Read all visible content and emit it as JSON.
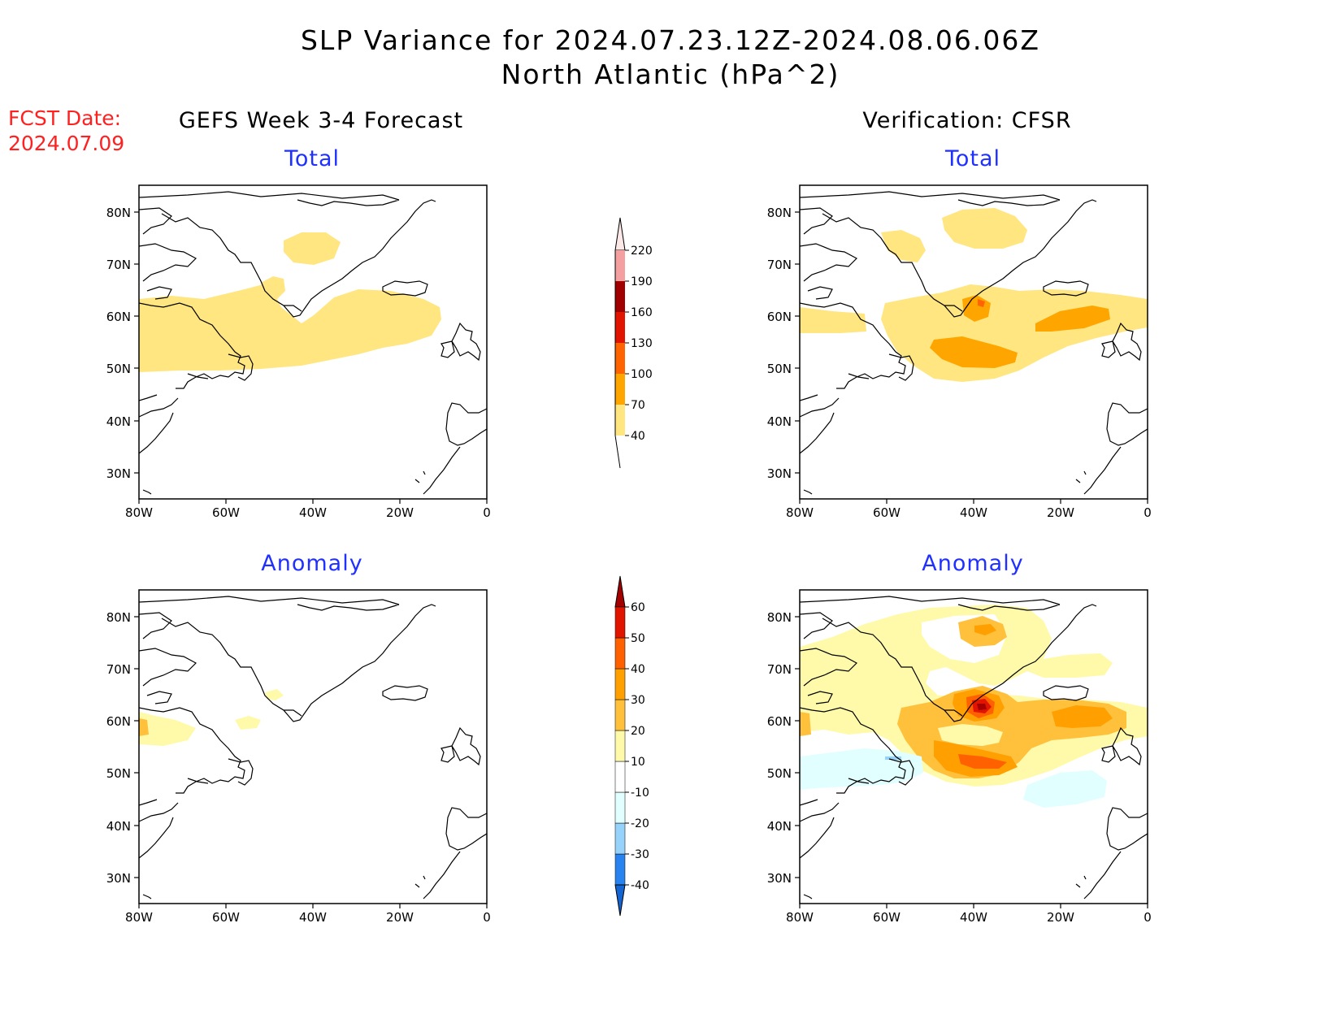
{
  "header": {
    "title_line1": "SLP Variance for 2024.07.23.12Z-2024.08.06.06Z",
    "title_line2": "North Atlantic (hPa^2)",
    "fcst_line1": "FCST Date:",
    "fcst_line2": "2024.07.09"
  },
  "columns": {
    "left_title": "GEFS Week 3-4 Forecast",
    "right_title": "Verification: CFSR"
  },
  "panels": {
    "tl_label": "Total",
    "tr_label": "Total",
    "bl_label": "Anomaly",
    "br_label": "Anomaly"
  },
  "axes": {
    "lat_ticks": [
      "80N",
      "70N",
      "60N",
      "50N",
      "40N",
      "30N"
    ],
    "lon_ticks": [
      "80W",
      "60W",
      "40W",
      "20W",
      "0"
    ]
  },
  "colorbar_total": {
    "labels": [
      "40",
      "70",
      "100",
      "130",
      "160",
      "190",
      "220"
    ],
    "colors": [
      "#ffe680",
      "#ffa500",
      "#ff6400",
      "#e01400",
      "#a00000",
      "#f4a0a0",
      "#fde8e8"
    ]
  },
  "colorbar_anomaly": {
    "labels": [
      "-40",
      "-30",
      "-20",
      "-10",
      "10",
      "20",
      "30",
      "40",
      "50",
      "60"
    ],
    "colors": [
      "#1464d2",
      "#2882f0",
      "#96d2fa",
      "#e1ffff",
      "#ffffff",
      "#fffaaa",
      "#ffc03c",
      "#ffa000",
      "#ff6000",
      "#e11400",
      "#a50000"
    ]
  },
  "fill_colors": {
    "yellow": "#ffe680",
    "orange": "#ffa500",
    "orange_red": "#ff6400",
    "pale_yellow": "#fffaaa",
    "light_orange": "#ffc03c",
    "deep_orange": "#ff8c00",
    "red": "#e11400",
    "dark_red": "#a50000",
    "light_cyan": "#e1ffff"
  }
}
